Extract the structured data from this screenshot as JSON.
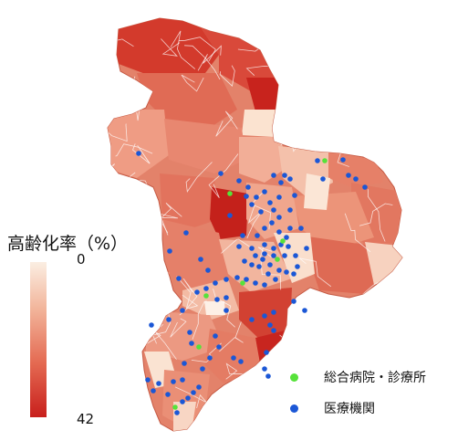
{
  "legend": {
    "title": "高齢化率（%）",
    "min_label": "0",
    "max_label": "42",
    "points": [
      {
        "name": "general-hospital",
        "label": "総合病院・診療所",
        "color": "#56e23a"
      },
      {
        "name": "medical-institution",
        "label": "医療機関",
        "color": "#1b57d6"
      }
    ]
  },
  "colors": {
    "low": "#fbeee2",
    "mid": "#e98a70",
    "high": "#c81f1c",
    "border": "#ffffff"
  }
}
